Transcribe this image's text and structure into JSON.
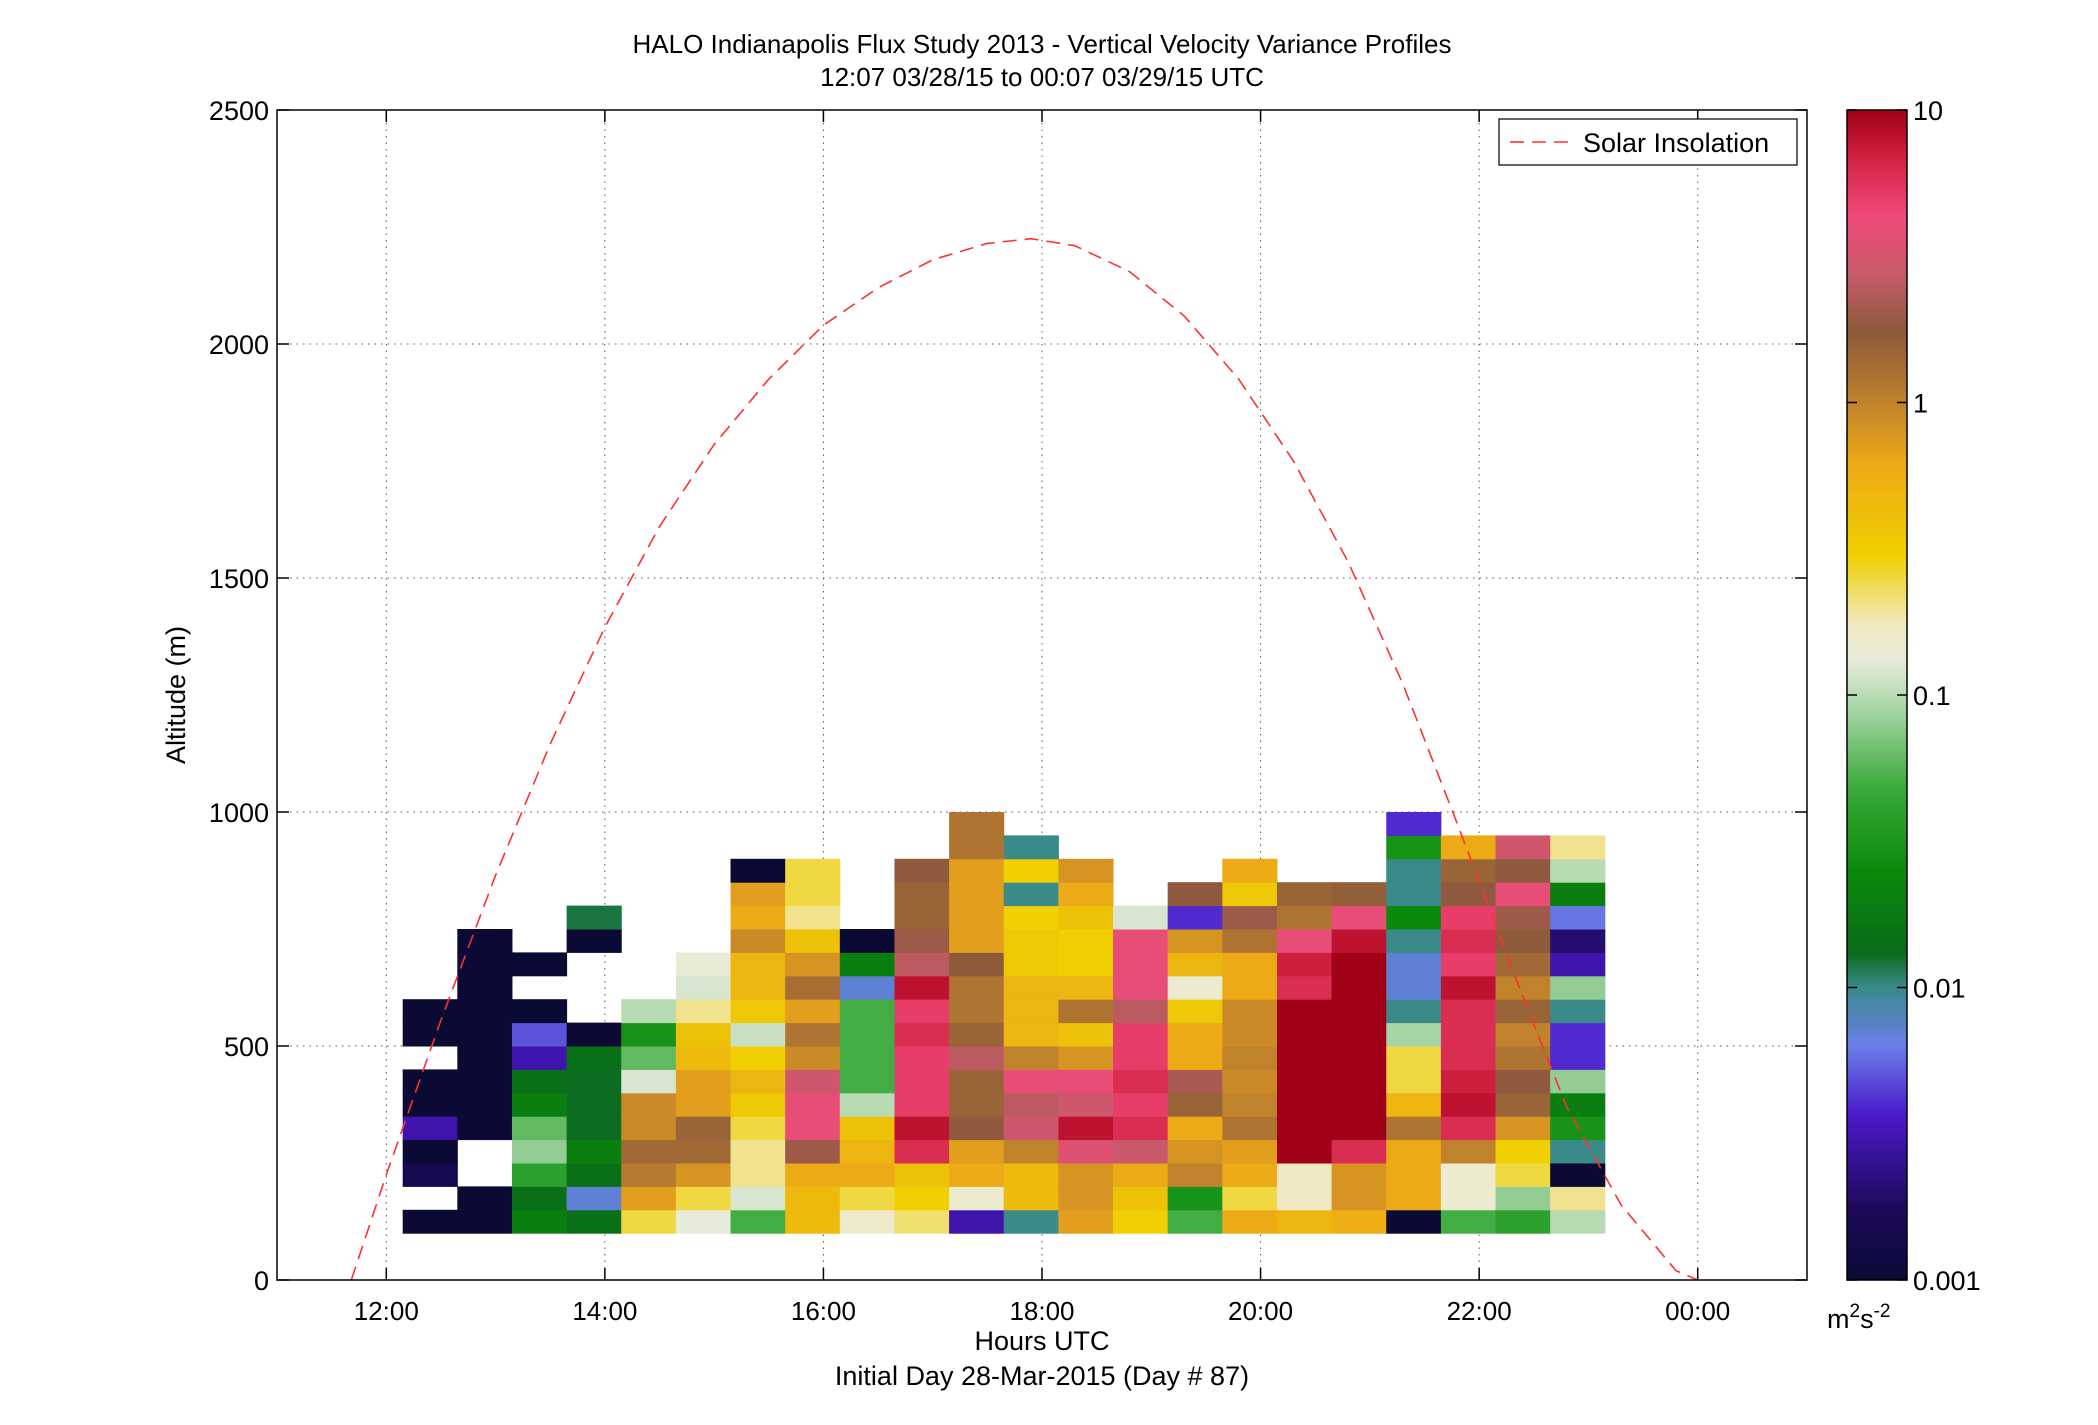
{
  "chart_data": {
    "type": "heatmap",
    "title": "HALO Indianapolis Flux Study 2013 - Vertical Velocity Variance Profiles",
    "subtitle": "12:07 03/28/15 to 00:07 03/29/15  UTC",
    "xlabel": "Hours UTC",
    "xlabel2": "Initial Day 28-Mar-2015 (Day # 87)",
    "ylabel": "Altitude (m)",
    "xlim": [
      11.0,
      25.0
    ],
    "ylim": [
      0,
      2500
    ],
    "x_tick_values": [
      12,
      14,
      16,
      18,
      20,
      22,
      24
    ],
    "x_tick_labels": [
      "12:00",
      "14:00",
      "16:00",
      "18:00",
      "20:00",
      "22:00",
      "00:00"
    ],
    "y_tick_values": [
      0,
      500,
      1000,
      1500,
      2000,
      2500
    ],
    "y_tick_labels": [
      "0",
      "500",
      "1000",
      "1500",
      "2000",
      "2500"
    ],
    "grid": true,
    "legend": {
      "entries": [
        "Solar Insolation"
      ],
      "placement": "top-right"
    },
    "colorbar": {
      "scale": "log",
      "range": [
        0.001,
        10
      ],
      "tick_values": [
        0.001,
        0.01,
        0.1,
        1,
        10
      ],
      "tick_labels": [
        "0.001",
        "0.01",
        "0.1",
        "1",
        "10"
      ],
      "units_base": "m",
      "units_sup1": "2",
      "units_mid": "s",
      "units_sup2": "-2"
    },
    "colormap_stops": [
      [
        "0.00",
        "#0a0a35"
      ],
      [
        "0.06",
        "#1c0a5a"
      ],
      [
        "0.14",
        "#4a18c8"
      ],
      [
        "0.20",
        "#6a7ee8"
      ],
      [
        "0.25",
        "#3a8a8a"
      ],
      [
        "0.28",
        "#0a6a1a"
      ],
      [
        "0.35",
        "#0a8a0a"
      ],
      [
        "0.42",
        "#3aaa3a"
      ],
      [
        "0.48",
        "#9ad09a"
      ],
      [
        "0.53",
        "#e8ecdc"
      ],
      [
        "0.56",
        "#f0e8c0"
      ],
      [
        "0.62",
        "#f0d000"
      ],
      [
        "0.70",
        "#eca818"
      ],
      [
        "0.76",
        "#b87a30"
      ],
      [
        "0.81",
        "#8a5a3a"
      ],
      [
        "0.86",
        "#c85a6a"
      ],
      [
        "0.91",
        "#f04a7a"
      ],
      [
        "0.96",
        "#d02040"
      ],
      [
        "1.00",
        "#a00018"
      ]
    ],
    "solar_insolation": {
      "name": "Solar Insolation",
      "x": [
        11.68,
        12.0,
        12.5,
        13.0,
        13.5,
        14.0,
        14.5,
        15.0,
        15.5,
        16.0,
        16.5,
        17.0,
        17.5,
        17.9,
        18.3,
        18.8,
        19.3,
        19.8,
        20.3,
        20.8,
        21.3,
        21.8,
        22.3,
        22.8,
        23.3,
        23.8,
        24.0
      ],
      "y": [
        0,
        225,
        555,
        865,
        1145,
        1395,
        1610,
        1785,
        1925,
        2040,
        2120,
        2180,
        2215,
        2225,
        2210,
        2155,
        2060,
        1925,
        1750,
        1535,
        1275,
        975,
        665,
        370,
        160,
        20,
        0
      ]
    },
    "bins": {
      "x_start_hours": 12.15,
      "x_step_hours": 0.5,
      "y_start_m": 100,
      "y_step_m": 50,
      "columns": [
        [
          0.001,
          null,
          0.0015,
          0.001,
          0.003,
          0.001,
          0.001,
          null,
          0.001,
          0.001
        ],
        [
          0.001,
          0.001,
          null,
          null,
          0.001,
          0.001,
          0.001,
          0.001,
          0.001,
          0.001,
          0.001,
          0.001,
          0.001
        ],
        [
          0.02,
          0.015,
          0.04,
          0.08,
          0.06,
          0.02,
          0.015,
          0.003,
          0.005,
          0.001,
          null,
          0.001
        ],
        [
          0.015,
          0.007,
          0.015,
          0.02,
          0.013,
          0.013,
          0.013,
          0.015,
          0.001,
          null,
          null,
          null,
          0.001,
          0.012
        ],
        [
          0.25,
          0.7,
          1.1,
          1.4,
          0.9,
          0.9,
          0.12,
          0.06,
          0.03,
          0.1
        ],
        [
          0.13,
          0.25,
          0.8,
          1.4,
          1.5,
          0.7,
          0.7,
          0.45,
          0.4,
          0.2,
          0.12,
          0.14
        ],
        [
          0.05,
          0.12,
          0.2,
          0.2,
          0.25,
          0.35,
          0.5,
          0.3,
          0.11,
          0.35,
          0.5,
          0.5,
          0.9,
          0.6,
          0.7,
          0.001
        ],
        [
          0.45,
          0.45,
          0.6,
          2.0,
          4.0,
          4.0,
          3.0,
          0.9,
          1.2,
          0.7,
          1.3,
          0.8,
          0.4,
          0.2,
          0.25,
          0.25
        ],
        [
          0.16,
          0.25,
          0.6,
          0.5,
          0.4,
          0.1,
          0.05,
          0.05,
          0.05,
          0.05,
          0.007,
          0.02,
          0.001
        ],
        [
          0.22,
          0.3,
          0.4,
          6.0,
          8.0,
          5.0,
          5.0,
          5.0,
          6.0,
          5.0,
          8.0,
          2.5,
          2.0,
          1.5,
          1.5,
          1.8
        ],
        [
          0.003,
          0.15,
          0.6,
          0.7,
          1.8,
          1.5,
          1.5,
          2.5,
          1.5,
          1.2,
          1.2,
          1.7,
          0.7,
          0.7,
          0.7,
          0.7,
          1.2,
          1.2
        ],
        [
          0.01,
          0.45,
          0.45,
          1.0,
          3.0,
          2.5,
          4.0,
          1.0,
          0.5,
          0.5,
          0.5,
          0.35,
          0.35,
          0.3,
          0.01,
          0.3,
          0.01
        ],
        [
          0.7,
          0.8,
          0.8,
          3.5,
          8.0,
          3.0,
          4.0,
          0.8,
          0.4,
          1.2,
          0.5,
          0.3,
          0.3,
          0.4,
          0.6,
          0.8
        ],
        [
          0.3,
          0.4,
          0.6,
          2.8,
          6.0,
          5.0,
          6.0,
          5.0,
          5.0,
          2.5,
          4.0,
          4.0,
          4.0,
          0.12
        ],
        [
          0.05,
          0.03,
          1.0,
          0.8,
          0.6,
          1.5,
          2.2,
          0.6,
          0.6,
          0.35,
          0.15,
          0.5,
          0.8,
          0.004,
          1.8
        ],
        [
          0.6,
          0.25,
          0.6,
          0.7,
          1.2,
          1.0,
          0.9,
          1.0,
          0.9,
          0.9,
          0.6,
          0.6,
          1.2,
          2.0,
          0.35,
          0.6
        ],
        [
          0.5,
          0.17,
          0.17,
          10,
          10,
          10,
          10,
          10,
          10,
          10,
          6.0,
          7.0,
          4.0,
          1.2,
          1.5
        ],
        [
          0.55,
          0.8,
          0.8,
          6.0,
          10,
          10,
          10,
          10,
          10,
          10,
          10,
          10,
          8.0,
          4.0,
          1.6
        ],
        [
          0.001,
          0.6,
          0.6,
          0.6,
          1.2,
          0.5,
          0.25,
          0.25,
          0.09,
          0.01,
          0.007,
          0.007,
          0.01,
          0.025,
          0.01,
          0.01,
          0.03,
          0.004
        ],
        [
          0.05,
          0.15,
          0.15,
          1.0,
          6.0,
          8.0,
          7.0,
          6.0,
          6.0,
          6.0,
          8.0,
          5.0,
          6.0,
          5.0,
          1.8,
          1.5,
          0.6
        ],
        [
          0.04,
          0.08,
          0.25,
          0.3,
          0.8,
          1.5,
          1.8,
          1.2,
          1.0,
          1.5,
          1.0,
          1.4,
          1.7,
          2.0,
          4.0,
          1.8,
          3.0
        ],
        [
          0.1,
          0.2,
          0.001,
          0.01,
          0.03,
          0.02,
          0.08,
          0.004,
          0.004,
          0.01,
          0.08,
          0.003,
          0.002,
          0.006,
          0.02,
          0.1,
          0.2
        ]
      ]
    }
  }
}
